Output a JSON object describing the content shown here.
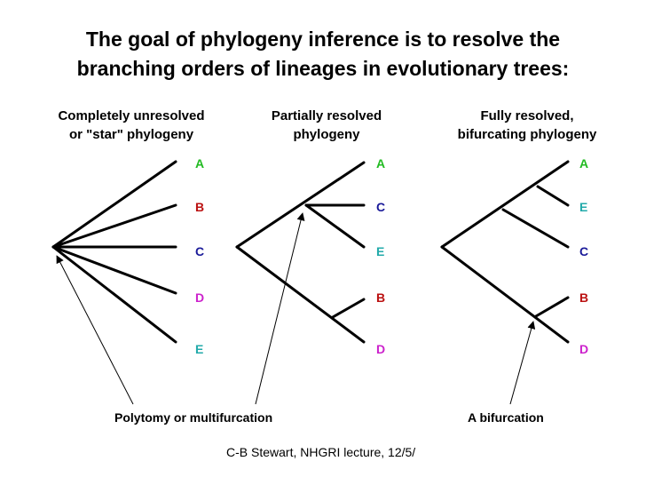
{
  "title": {
    "line1": "The goal of phylogeny inference is to resolve the",
    "line2": "branching orders of lineages in evolutionary trees:"
  },
  "trees": {
    "star": {
      "heading_line1": "Completely unresolved",
      "heading_line2": "or \"star\" phylogeny",
      "leaves": [
        "A",
        "B",
        "C",
        "D",
        "E"
      ]
    },
    "partial": {
      "heading_line1": "Partially resolved",
      "heading_line2": "phylogeny",
      "leaves": [
        "A",
        "C",
        "E",
        "B",
        "D"
      ]
    },
    "full": {
      "heading_line1": "Fully resolved,",
      "heading_line2": "bifurcating phylogeny",
      "leaves": [
        "A",
        "E",
        "C",
        "B",
        "D"
      ]
    }
  },
  "taxon_colors": {
    "A": "#22bb22",
    "B": "#bb1111",
    "C": "#1a1a99",
    "D": "#cc22cc",
    "E": "#22aaaa"
  },
  "annotations": {
    "polytomy": "Polytomy or multifurcation",
    "bifurcation": "A bifurcation"
  },
  "footer": "C-B Stewart, NHGRI lecture, 12/5/"
}
